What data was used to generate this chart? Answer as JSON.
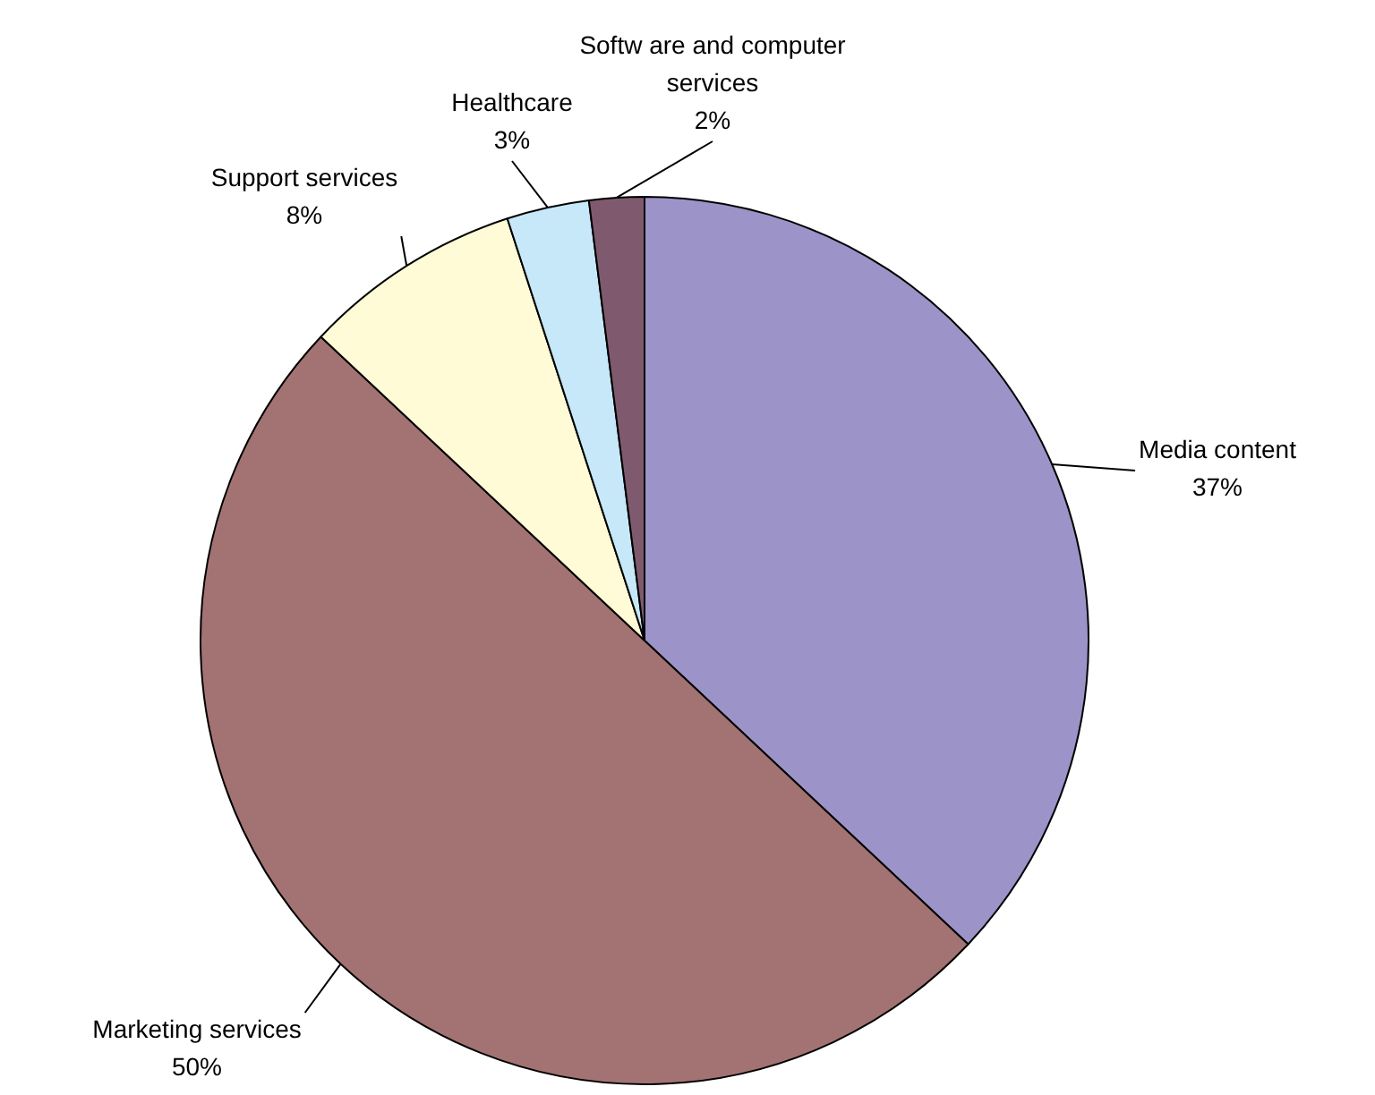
{
  "chart_data": {
    "type": "pie",
    "categories": [
      "Media content",
      "Marketing services",
      "Support services",
      "Healthcare",
      "Softw are and computer services"
    ],
    "values": [
      37,
      50,
      8,
      3,
      2
    ],
    "colors": [
      "#9c94c8",
      "#a27372",
      "#fffbd6",
      "#c6e8f8",
      "#7f5a6e"
    ],
    "value_labels": [
      "37%",
      "50%",
      "8%",
      "3%",
      "2%"
    ],
    "legend": false
  }
}
